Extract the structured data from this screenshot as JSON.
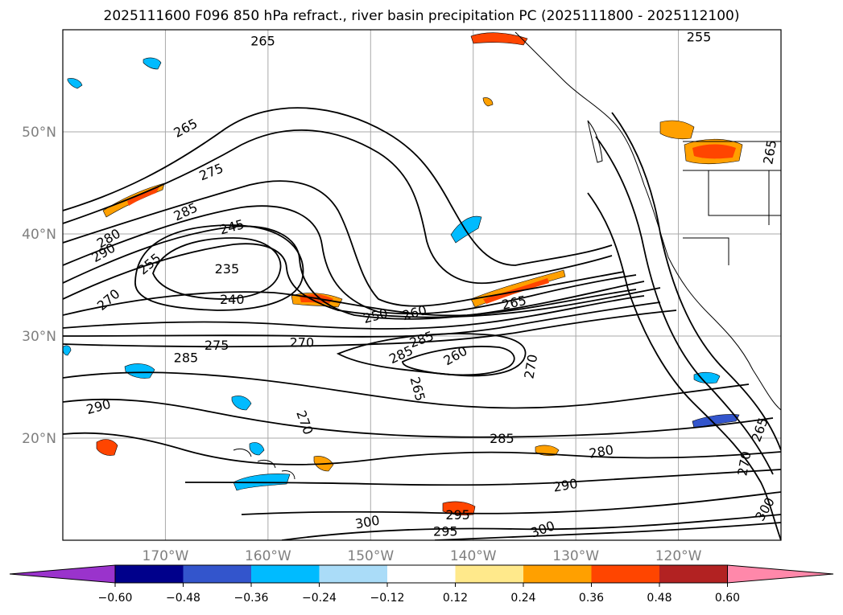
{
  "title": "2025111600 F096 850 hPa refract., river basin precipitation PC (2025111800 - 2025112100)",
  "map": {
    "lat_labels": [
      "50°N",
      "40°N",
      "30°N",
      "20°N"
    ],
    "lon_labels": [
      "170°W",
      "160°W",
      "150°W",
      "140°W",
      "130°W",
      "120°W"
    ],
    "contour_labels": [
      {
        "text": "265",
        "lon": -160.5,
        "lat": 58.8,
        "angle": 0
      },
      {
        "text": "255",
        "lon": -118.0,
        "lat": 59.2,
        "angle": 0
      },
      {
        "text": "265",
        "lon": -168.0,
        "lat": 50.3,
        "angle": -28
      },
      {
        "text": "275",
        "lon": -165.5,
        "lat": 46.0,
        "angle": -22
      },
      {
        "text": "285",
        "lon": -168.0,
        "lat": 42.1,
        "angle": -25
      },
      {
        "text": "280",
        "lon": -175.5,
        "lat": 39.5,
        "angle": -30
      },
      {
        "text": "290",
        "lon": -176.0,
        "lat": 38.1,
        "angle": -30
      },
      {
        "text": "245",
        "lon": -163.5,
        "lat": 40.6,
        "angle": -15
      },
      {
        "text": "255",
        "lon": -171.5,
        "lat": 37.0,
        "angle": -40
      },
      {
        "text": "270",
        "lon": -175.5,
        "lat": 33.5,
        "angle": -40
      },
      {
        "text": "235",
        "lon": -164.0,
        "lat": 36.5,
        "angle": 0
      },
      {
        "text": "240",
        "lon": -163.5,
        "lat": 33.5,
        "angle": 0
      },
      {
        "text": "250",
        "lon": -149.5,
        "lat": 31.9,
        "angle": -15
      },
      {
        "text": "260",
        "lon": -145.7,
        "lat": 32.2,
        "angle": -15
      },
      {
        "text": "265",
        "lon": -136.0,
        "lat": 33.2,
        "angle": -12
      },
      {
        "text": "275",
        "lon": -165.0,
        "lat": 29.0,
        "angle": 0
      },
      {
        "text": "270",
        "lon": -156.7,
        "lat": 29.3,
        "angle": 0
      },
      {
        "text": "285",
        "lon": -147.0,
        "lat": 28.1,
        "angle": -25
      },
      {
        "text": "285",
        "lon": -145.0,
        "lat": 29.6,
        "angle": -20
      },
      {
        "text": "260",
        "lon": -141.7,
        "lat": 28.0,
        "angle": -30
      },
      {
        "text": "270",
        "lon": -134.3,
        "lat": 27.0,
        "angle": -80
      },
      {
        "text": "265",
        "lon": -145.5,
        "lat": 24.8,
        "angle": 75
      },
      {
        "text": "285",
        "lon": -168.0,
        "lat": 27.8,
        "angle": 0
      },
      {
        "text": "290",
        "lon": -176.5,
        "lat": 23.0,
        "angle": -15
      },
      {
        "text": "270",
        "lon": -156.5,
        "lat": 21.5,
        "angle": 70
      },
      {
        "text": "285",
        "lon": -137.2,
        "lat": 19.9,
        "angle": 0
      },
      {
        "text": "280",
        "lon": -127.5,
        "lat": 18.6,
        "angle": -10
      },
      {
        "text": "290",
        "lon": -131.0,
        "lat": 15.3,
        "angle": -10
      },
      {
        "text": "295",
        "lon": -141.5,
        "lat": 12.4,
        "angle": 0
      },
      {
        "text": "300",
        "lon": -150.3,
        "lat": 11.7,
        "angle": -10
      },
      {
        "text": "295",
        "lon": -142.7,
        "lat": 10.8,
        "angle": 0
      },
      {
        "text": "300",
        "lon": -133.2,
        "lat": 11.0,
        "angle": -20
      },
      {
        "text": "265",
        "lon": -112.0,
        "lat": 20.8,
        "angle": -70
      },
      {
        "text": "270",
        "lon": -113.5,
        "lat": 17.5,
        "angle": -80
      },
      {
        "text": "265",
        "lon": -111.0,
        "lat": 48.0,
        "angle": -80
      },
      {
        "text": "300",
        "lon": -111.5,
        "lat": 13.0,
        "angle": -60
      }
    ],
    "colors": {
      "contour": "#000000",
      "grid": "#a9a9a9",
      "coast": "#000000",
      "label_gray": "#7f7f7f"
    }
  },
  "colorbar": {
    "ticks": [
      "−0.60",
      "−0.48",
      "−0.36",
      "−0.24",
      "−0.12",
      "0.12",
      "0.24",
      "0.36",
      "0.48",
      "0.60"
    ],
    "colors": [
      "#9a33cc",
      "#00008b",
      "#3355cc",
      "#00bbff",
      "#aadcf8",
      "#ffffff",
      "#ffe98b",
      "#ffa000",
      "#ff4500",
      "#b22222",
      "#ff88aa"
    ]
  }
}
